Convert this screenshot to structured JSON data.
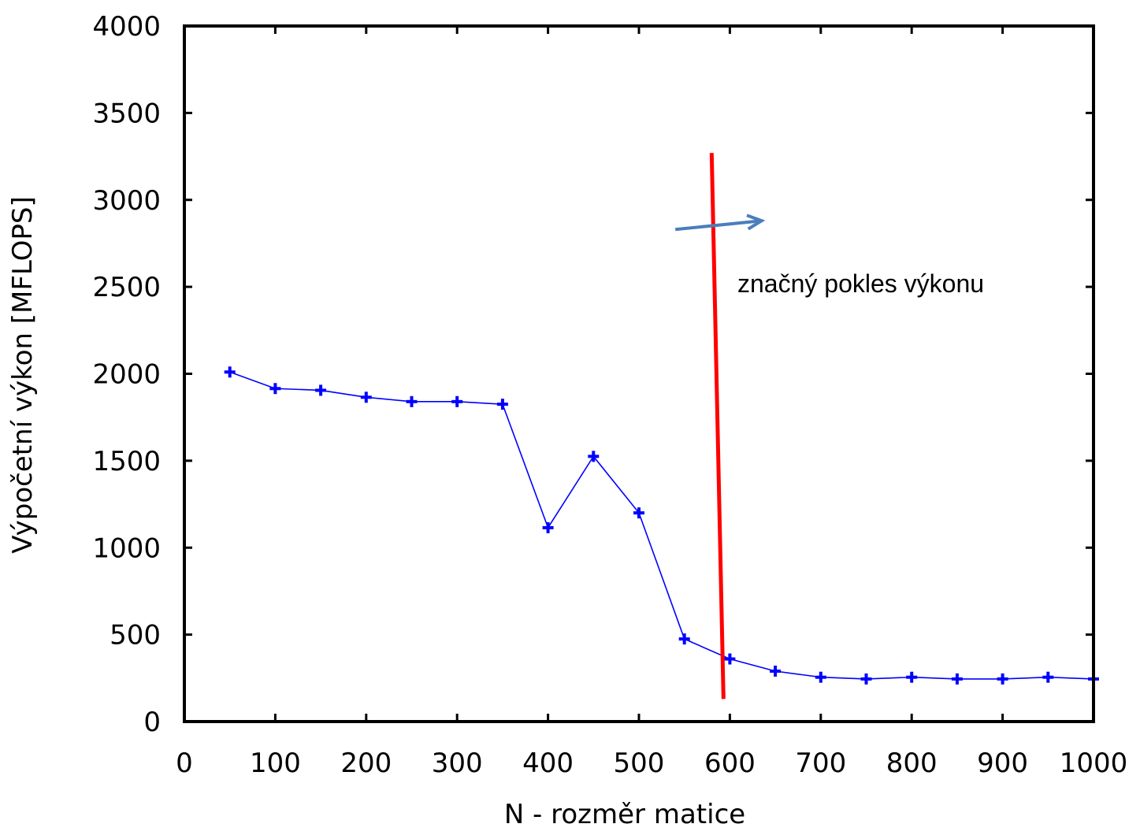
{
  "chart_data": {
    "type": "line",
    "xlabel": "N - rozměr matice",
    "ylabel": "Výpočetní výkon [MFLOPS]",
    "xlim": [
      0,
      1000
    ],
    "ylim": [
      0,
      4000
    ],
    "xticks": [
      0,
      100,
      200,
      300,
      400,
      500,
      600,
      700,
      800,
      900,
      1000
    ],
    "yticks": [
      0,
      500,
      1000,
      1500,
      2000,
      2500,
      3000,
      3500,
      4000
    ],
    "grid": false,
    "series": [
      {
        "color": "#0000ff",
        "marker": "plus",
        "x": [
          50,
          100,
          150,
          200,
          250,
          300,
          350,
          400,
          450,
          500,
          550,
          600,
          650,
          700,
          750,
          800,
          850,
          900,
          950,
          1000
        ],
        "y": [
          2010,
          1915,
          1905,
          1865,
          1840,
          1840,
          1825,
          1115,
          1525,
          1200,
          475,
          360,
          290,
          255,
          245,
          255,
          245,
          245,
          255,
          245
        ]
      }
    ],
    "annotations": {
      "text": "značný pokles výkonu",
      "threshold_line": {
        "color": "#ff0000",
        "from": [
          580,
          3270
        ],
        "to": [
          593,
          130
        ]
      },
      "arrow": {
        "color": "#4a7ebb",
        "from": [
          540,
          2830
        ],
        "to": [
          635,
          2880
        ]
      }
    }
  }
}
